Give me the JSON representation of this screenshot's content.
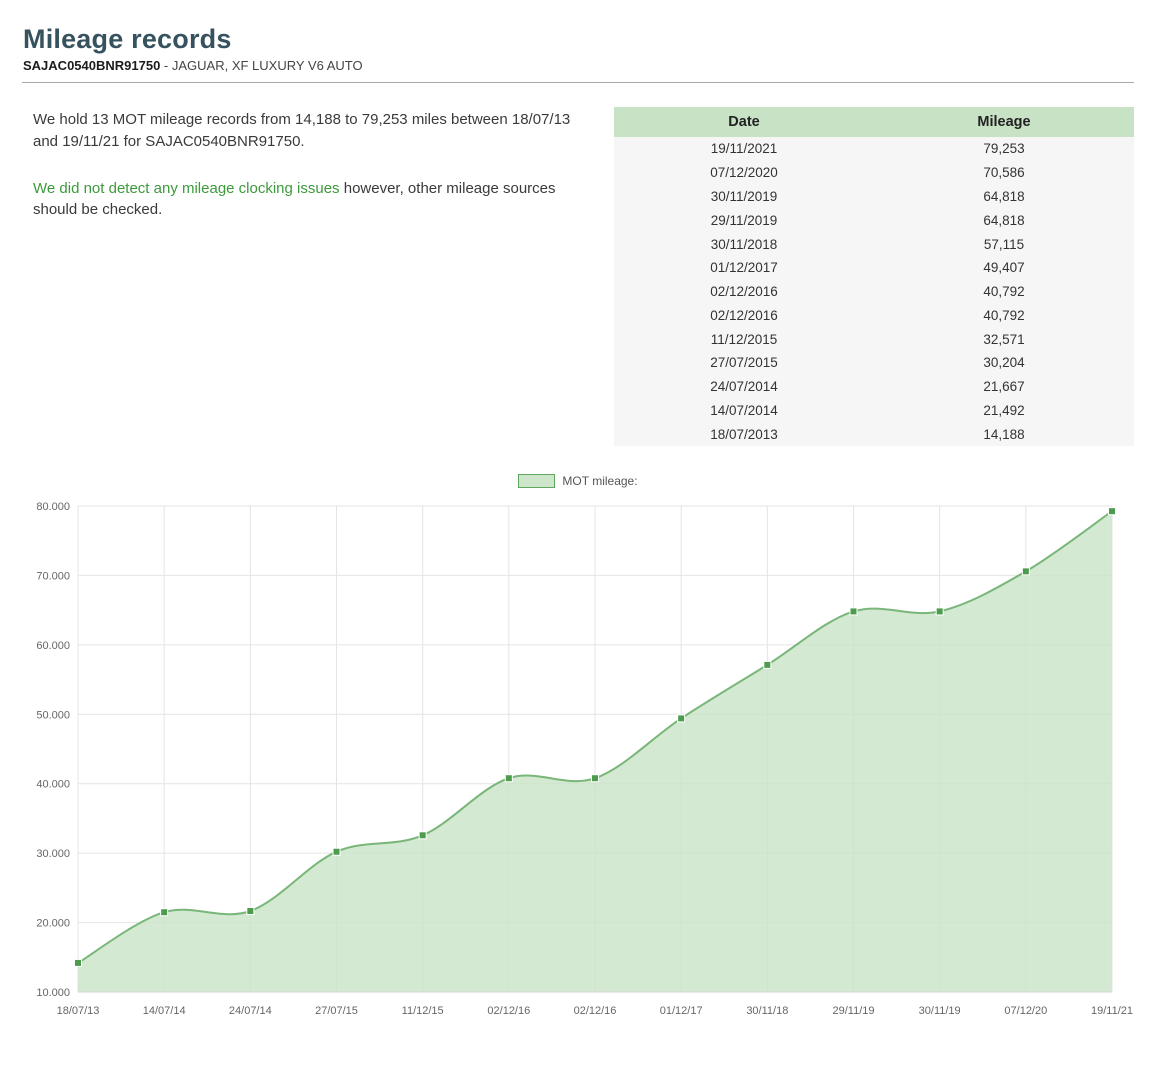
{
  "header": {
    "title": "Mileage records",
    "vin": "SAJAC0540BNR91750",
    "vehicle_rest": " - JAGUAR, XF LUXURY V6 AUTO"
  },
  "summary": {
    "line1": "We hold 13 MOT mileage records from 14,188 to 79,253 miles between 18/07/13 and 19/11/21 for SAJAC0540BNR91750.",
    "clocking_highlight": "We did not detect any mileage clocking issues",
    "clocking_rest": " however, other mileage sources should be checked."
  },
  "table": {
    "columns": [
      "Date",
      "Mileage"
    ],
    "rows": [
      [
        "19/11/2021",
        "79,253"
      ],
      [
        "07/12/2020",
        "70,586"
      ],
      [
        "30/11/2019",
        "64,818"
      ],
      [
        "29/11/2019",
        "64,818"
      ],
      [
        "30/11/2018",
        "57,115"
      ],
      [
        "01/12/2017",
        "49,407"
      ],
      [
        "02/12/2016",
        "40,792"
      ],
      [
        "02/12/2016",
        "40,792"
      ],
      [
        "11/12/2015",
        "32,571"
      ],
      [
        "27/07/2015",
        "30,204"
      ],
      [
        "24/07/2014",
        "21,667"
      ],
      [
        "14/07/2014",
        "21,492"
      ],
      [
        "18/07/2013",
        "14,188"
      ]
    ]
  },
  "chart_data": {
    "type": "area",
    "legend": "MOT mileage:",
    "legend_position": "top",
    "categories": [
      "18/07/13",
      "14/07/14",
      "24/07/14",
      "27/07/15",
      "11/12/15",
      "02/12/16",
      "02/12/16",
      "01/12/17",
      "30/11/18",
      "29/11/19",
      "30/11/19",
      "07/12/20",
      "19/11/21"
    ],
    "values": [
      14188,
      21492,
      21667,
      30204,
      32571,
      40792,
      40792,
      49407,
      57115,
      64818,
      64818,
      70586,
      79253
    ],
    "ylim": [
      10000,
      80000
    ],
    "ytick_step": 10000,
    "ytick_labels": [
      "10.000",
      "20.000",
      "30.000",
      "40.000",
      "50.000",
      "60.000",
      "70.000",
      "80.000"
    ],
    "grid": true,
    "marker": "square",
    "colors": {
      "area_fill": "#c9e3c7",
      "line": "#79b679",
      "marker": "#4d9b4d",
      "gridline": "#e4e4e4",
      "tick_text": "#666666",
      "header_green": "#c8e2c5",
      "highlight_green": "#3c9a3c",
      "title_color": "#36525e"
    }
  }
}
